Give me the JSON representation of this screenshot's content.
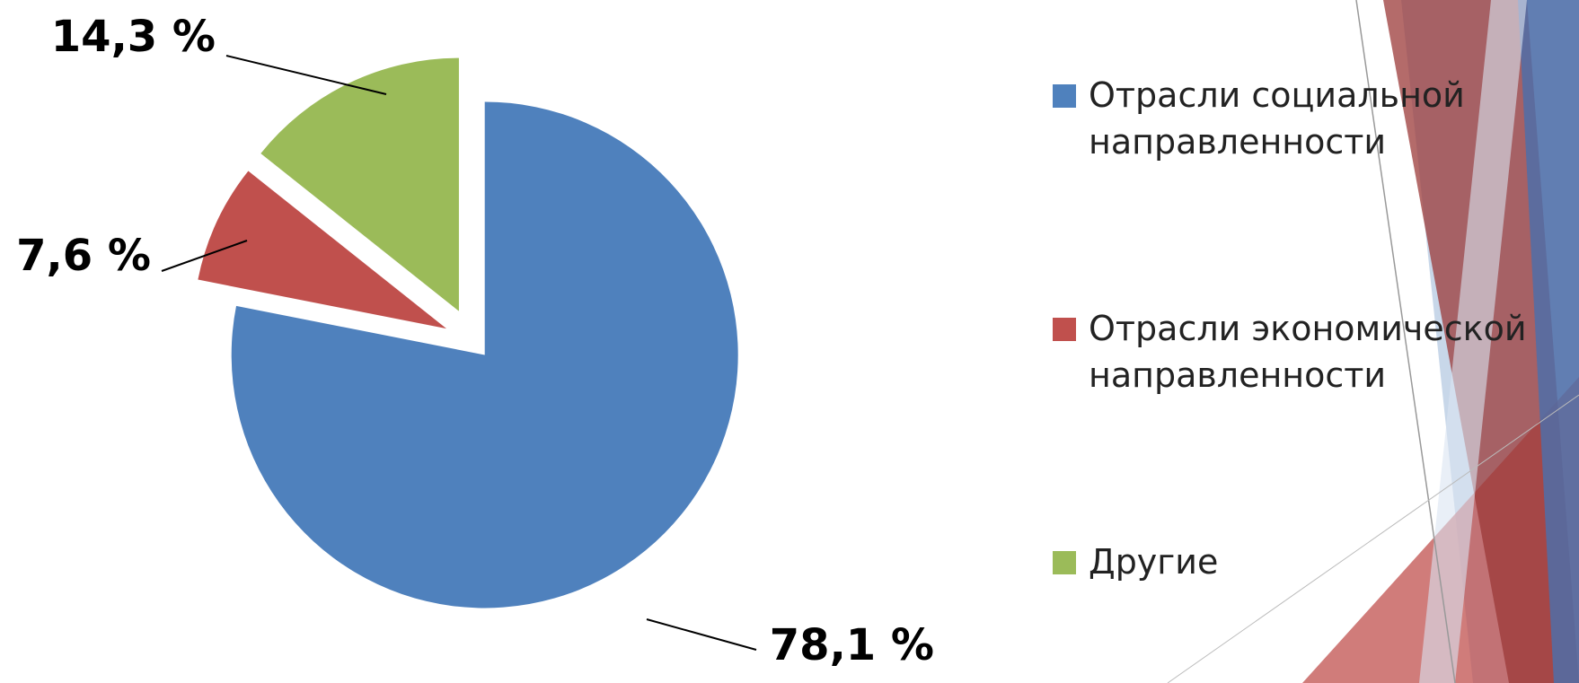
{
  "chart_data": {
    "type": "pie",
    "series": [
      {
        "name": "Отрасли социальной направленности",
        "color": "#4f81bd",
        "values": [
          78.1
        ],
        "value_labels": [
          "78,1 %"
        ]
      },
      {
        "name": "Отрасли экономической направленности",
        "color": "#c0504d",
        "values": [
          7.6
        ],
        "value_labels": [
          "7,6 %"
        ]
      },
      {
        "name": "Другие",
        "color": "#9bbb59",
        "values": [
          14.3
        ],
        "value_labels": [
          "14,3 %"
        ]
      }
    ],
    "legend": "right"
  }
}
